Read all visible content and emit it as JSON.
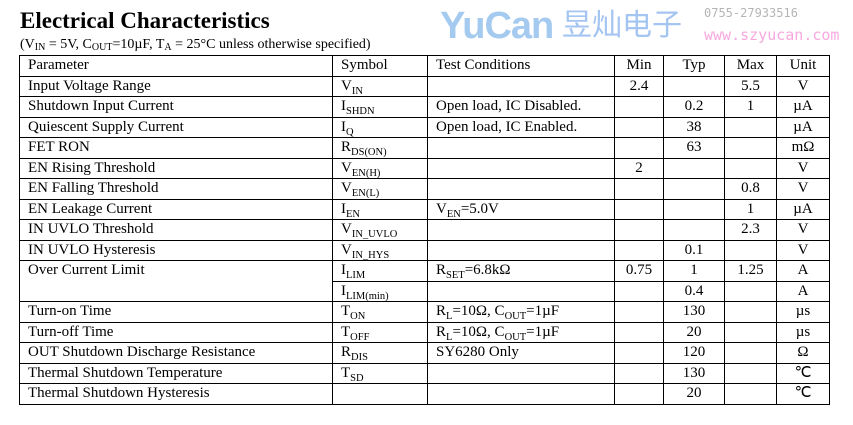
{
  "title": "Electrical Characteristics",
  "conditions": {
    "p1": "(V",
    "p1sub": "IN",
    "p2": " = 5V, C",
    "p2sub": "OUT",
    "p3": "=10µF, T",
    "p3sub": "A",
    "p4": " = 25°C unless otherwise specified)"
  },
  "headers": {
    "parameter": "Parameter",
    "symbol": "Symbol",
    "test": "Test Conditions",
    "min": "Min",
    "typ": "Typ",
    "max": "Max",
    "unit": "Unit"
  },
  "rows": [
    {
      "param": "Input Voltage Range",
      "sym": "V",
      "sub": "IN",
      "test": "",
      "min": "2.4",
      "typ": "",
      "max": "5.5",
      "unit": "V"
    },
    {
      "param": "Shutdown Input Current",
      "sym": "I",
      "sub": "SHDN",
      "test": "Open load, IC Disabled.",
      "min": "",
      "typ": "0.2",
      "max": "1",
      "unit": "µA"
    },
    {
      "param": "Quiescent Supply Current",
      "sym": "I",
      "sub": "Q",
      "test": "Open load, IC Enabled.",
      "min": "",
      "typ": "38",
      "max": "",
      "unit": "µA"
    },
    {
      "param": "FET RON",
      "sym": "R",
      "sub": "DS(ON)",
      "test": "",
      "min": "",
      "typ": "63",
      "max": "",
      "unit": "mΩ"
    },
    {
      "param": "EN Rising Threshold",
      "sym": "V",
      "sub": "EN(H)",
      "test": "",
      "min": "2",
      "typ": "",
      "max": "",
      "unit": "V"
    },
    {
      "param": "EN Falling Threshold",
      "sym": "V",
      "sub": "EN(L)",
      "test": "",
      "min": "",
      "typ": "",
      "max": "0.8",
      "unit": "V"
    },
    {
      "param": "EN Leakage Current",
      "sym": "I",
      "sub": "EN",
      "test": "V",
      "testsub": "EN",
      "test2": "=5.0V",
      "min": "",
      "typ": "",
      "max": "1",
      "unit": "µA"
    },
    {
      "param": "IN UVLO Threshold",
      "sym": "V",
      "sub": "IN_UVLO",
      "test": "",
      "min": "",
      "typ": "",
      "max": "2.3",
      "unit": "V"
    },
    {
      "param": "IN UVLO Hysteresis",
      "sym": "V",
      "sub": "IN_HYS",
      "test": "",
      "min": "",
      "typ": "0.1",
      "max": "",
      "unit": "V"
    },
    {
      "param": "Over Current Limit",
      "sym": "I",
      "sub": "LIM",
      "test": "R",
      "testsub": "SET",
      "test2": "=6.8kΩ",
      "min": "0.75",
      "typ": "1",
      "max": "1.25",
      "unit": "A"
    },
    {
      "param": "",
      "sym": "I",
      "sub": "LIM(min)",
      "test": "",
      "min": "",
      "typ": "0.4",
      "max": "",
      "unit": "A"
    },
    {
      "param": "Turn-on Time",
      "sym": "T",
      "sub": "ON",
      "test": "R",
      "testsub": "L",
      "test2": "=10Ω, C",
      "testsub2": "OUT",
      "test3": "=1µF",
      "min": "",
      "typ": "130",
      "max": "",
      "unit": "µs"
    },
    {
      "param": "Turn-off Time",
      "sym": "T",
      "sub": "OFF",
      "test": "R",
      "testsub": "L",
      "test2": "=10Ω, C",
      "testsub2": "OUT",
      "test3": "=1µF",
      "min": "",
      "typ": "20",
      "max": "",
      "unit": "µs"
    },
    {
      "param": "OUT Shutdown Discharge Resistance",
      "sym": "R",
      "sub": "DIS",
      "test": "SY6280 Only",
      "min": "",
      "typ": "120",
      "max": "",
      "unit": "Ω"
    },
    {
      "param": "Thermal Shutdown Temperature",
      "sym": "T",
      "sub": "SD",
      "test": "",
      "min": "",
      "typ": "130",
      "max": "",
      "unit": "℃"
    },
    {
      "param": "Thermal Shutdown Hysteresis",
      "sym": "",
      "sub": "",
      "test": "",
      "min": "",
      "typ": "20",
      "max": "",
      "unit": "℃"
    }
  ],
  "watermark": {
    "logo": "YuCan",
    "chinese": "昱灿电子",
    "phone": "0755-27933516",
    "url": "www.szyucan.com"
  }
}
